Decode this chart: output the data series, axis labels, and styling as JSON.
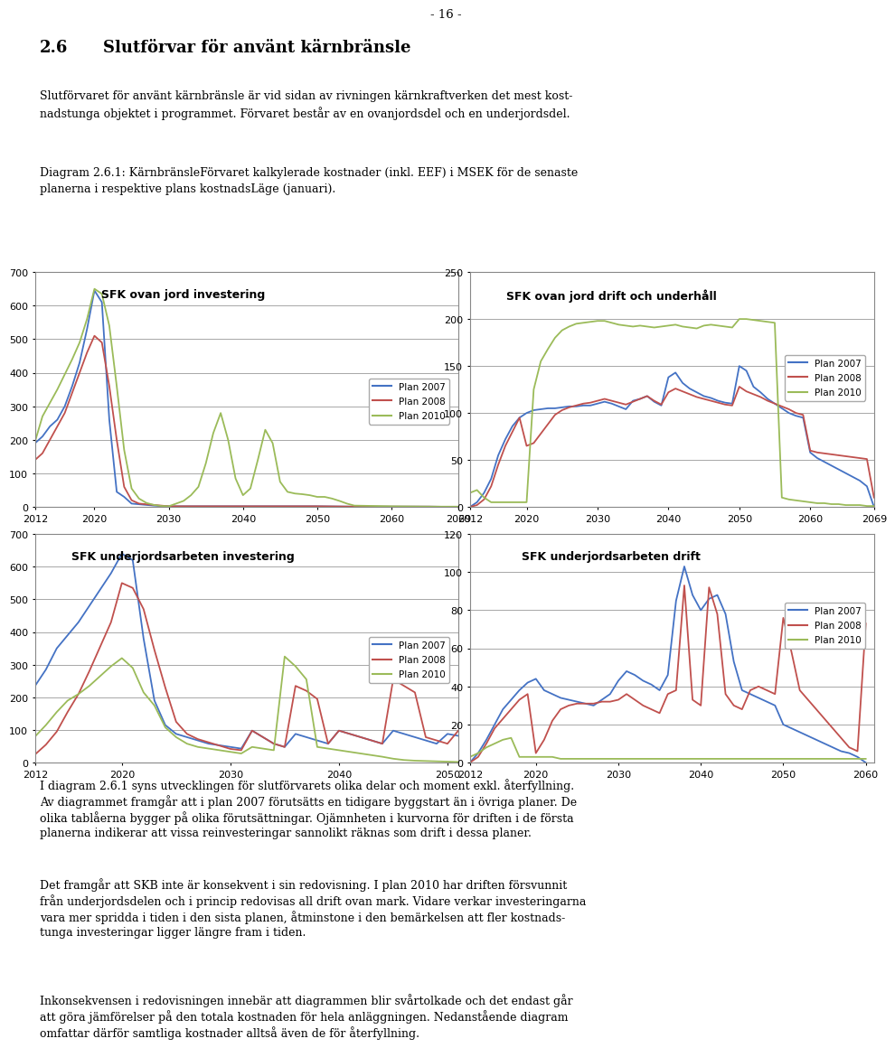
{
  "page_header": "- 16 -",
  "section_title": "2.6        Slutförvar för använt kärnbränsle",
  "para1_line1": "Slutförvaret för använt kärnbränsle är vid sidan av rivningen kärnkraftverken det mest kost-",
  "para1_line2": "nadstunga objektet i programmet. Förvaret består av en ovanjordsdel och en underjordsdel.",
  "caption_line1": "Diagram 2.6.1: KärnbränsleFörvaret kalkylerade kostnader (inkl. EEF) i MSEK för de senaste",
  "caption_line2": "planerna i respektive plans kostnadsLäge (januari).",
  "para2_line1": "I diagram 2.6.1 syns utvecklingen för slutförvarets olika delar och moment exkl. återfyllning.",
  "para2_line2": "Av diagrammet framgår att i plan 2007 förutsätts en tidigare byggstart än i övriga planer. De",
  "para2_line3": "olika tablåerna bygger på olika förutsättningar. Ojämnheten i kurvorna för driften i de första",
  "para2_line4": "planerna indikerar att vissa reinvesteringar sannolikt räknas som drift i dessa planer.",
  "para3_line1": "Det framgår att SKB inte är konsekvent i sin redovisning. I plan 2010 har driften försvunnit",
  "para3_line2": "från underjordsdelen och i princip redovisas all drift ovan mark. Vidare verkar investeringarna",
  "para3_line3": "vara mer spridda i tiden i den sista planen, åtminstone i den bemärkelsen att fler kostnads-",
  "para3_line4": "tunga investeringar ligger längre fram i tiden.",
  "para4_line1": "Inkonsekvensen i redovisningen innebär att diagrammen blir svårtolkade och det endast går",
  "para4_line2": "att göra jämförelser på den totala kostnaden för hela anläggningen. Nedanstående diagram",
  "para4_line3": "omfattar därför samtliga kostnader alltså även de för återfyllning.",
  "colors": {
    "plan2007": "#4472C4",
    "plan2008": "#C0504D",
    "plan2010": "#9BBB59"
  },
  "charts": {
    "top_left": {
      "title": "SFK ovan jord investering",
      "ylim": [
        0,
        700
      ],
      "yticks": [
        0,
        100,
        200,
        300,
        400,
        500,
        600,
        700
      ],
      "xlim": [
        2012,
        2069
      ],
      "xticks": [
        2012,
        2020,
        2030,
        2040,
        2050,
        2060,
        2069
      ],
      "plan2007_x": [
        2012,
        2013,
        2014,
        2015,
        2016,
        2017,
        2018,
        2019,
        2020,
        2021,
        2022,
        2023,
        2024,
        2025,
        2026,
        2027,
        2028,
        2029,
        2030,
        2035,
        2040,
        2045,
        2050,
        2055,
        2060,
        2065,
        2069
      ],
      "plan2007_y": [
        190,
        210,
        240,
        260,
        300,
        360,
        430,
        530,
        645,
        610,
        260,
        45,
        30,
        10,
        8,
        6,
        4,
        3,
        2,
        2,
        2,
        2,
        2,
        1,
        1,
        1,
        0
      ],
      "plan2008_x": [
        2012,
        2013,
        2014,
        2015,
        2016,
        2017,
        2018,
        2019,
        2020,
        2021,
        2022,
        2023,
        2024,
        2025,
        2026,
        2027,
        2028,
        2029,
        2030,
        2035,
        2040,
        2045,
        2050,
        2055,
        2060,
        2065,
        2069
      ],
      "plan2008_y": [
        140,
        160,
        200,
        240,
        280,
        340,
        400,
        460,
        510,
        490,
        360,
        200,
        60,
        20,
        10,
        8,
        6,
        4,
        2,
        2,
        2,
        2,
        2,
        1,
        1,
        1,
        0
      ],
      "plan2010_x": [
        2012,
        2013,
        2014,
        2015,
        2016,
        2017,
        2018,
        2019,
        2020,
        2021,
        2022,
        2023,
        2024,
        2025,
        2026,
        2027,
        2028,
        2029,
        2030,
        2031,
        2032,
        2033,
        2034,
        2035,
        2036,
        2037,
        2038,
        2039,
        2040,
        2041,
        2042,
        2043,
        2044,
        2045,
        2046,
        2047,
        2048,
        2049,
        2050,
        2051,
        2052,
        2053,
        2054,
        2055,
        2060,
        2065,
        2069
      ],
      "plan2010_y": [
        195,
        270,
        310,
        350,
        395,
        440,
        490,
        560,
        650,
        635,
        540,
        360,
        170,
        55,
        25,
        12,
        6,
        3,
        2,
        10,
        18,
        35,
        60,
        130,
        220,
        280,
        200,
        85,
        35,
        55,
        140,
        230,
        190,
        75,
        45,
        40,
        38,
        35,
        30,
        30,
        25,
        18,
        10,
        4,
        2,
        1,
        1
      ]
    },
    "top_right": {
      "title": "SFK ovan jord drift och underhåll",
      "ylim": [
        0,
        250
      ],
      "yticks": [
        0,
        50,
        100,
        150,
        200,
        250
      ],
      "xlim": [
        2012,
        2069
      ],
      "xticks": [
        2012,
        2020,
        2030,
        2040,
        2050,
        2060,
        2069
      ],
      "plan2007_x": [
        2012,
        2013,
        2014,
        2015,
        2016,
        2017,
        2018,
        2019,
        2020,
        2021,
        2022,
        2023,
        2024,
        2025,
        2026,
        2027,
        2028,
        2029,
        2030,
        2031,
        2032,
        2033,
        2034,
        2035,
        2036,
        2037,
        2038,
        2039,
        2040,
        2041,
        2042,
        2043,
        2044,
        2045,
        2046,
        2047,
        2048,
        2049,
        2050,
        2051,
        2052,
        2053,
        2054,
        2055,
        2056,
        2057,
        2058,
        2059,
        2060,
        2061,
        2062,
        2063,
        2064,
        2065,
        2066,
        2067,
        2068,
        2069
      ],
      "plan2007_y": [
        0,
        5,
        15,
        30,
        55,
        72,
        86,
        95,
        100,
        103,
        104,
        105,
        105,
        106,
        107,
        107,
        108,
        108,
        110,
        112,
        110,
        107,
        104,
        113,
        115,
        118,
        112,
        108,
        138,
        143,
        132,
        126,
        122,
        118,
        116,
        113,
        111,
        110,
        150,
        145,
        128,
        122,
        115,
        110,
        105,
        100,
        97,
        95,
        58,
        52,
        48,
        44,
        40,
        36,
        32,
        28,
        22,
        0
      ],
      "plan2008_x": [
        2012,
        2013,
        2014,
        2015,
        2016,
        2017,
        2018,
        2019,
        2020,
        2021,
        2022,
        2023,
        2024,
        2025,
        2026,
        2027,
        2028,
        2029,
        2030,
        2031,
        2032,
        2033,
        2034,
        2035,
        2036,
        2037,
        2038,
        2039,
        2040,
        2041,
        2042,
        2043,
        2044,
        2045,
        2046,
        2047,
        2048,
        2049,
        2050,
        2051,
        2052,
        2053,
        2054,
        2055,
        2056,
        2057,
        2058,
        2059,
        2060,
        2061,
        2062,
        2063,
        2064,
        2065,
        2066,
        2067,
        2068,
        2069
      ],
      "plan2008_y": [
        0,
        2,
        8,
        22,
        45,
        65,
        80,
        95,
        65,
        68,
        78,
        88,
        98,
        103,
        106,
        108,
        110,
        111,
        113,
        115,
        113,
        111,
        109,
        112,
        115,
        118,
        113,
        109,
        122,
        126,
        123,
        120,
        117,
        115,
        113,
        111,
        109,
        108,
        128,
        123,
        120,
        117,
        113,
        110,
        107,
        104,
        100,
        98,
        60,
        58,
        57,
        56,
        55,
        54,
        53,
        52,
        51,
        10
      ],
      "plan2010_x": [
        2012,
        2013,
        2014,
        2015,
        2016,
        2017,
        2018,
        2019,
        2020,
        2021,
        2022,
        2023,
        2024,
        2025,
        2026,
        2027,
        2028,
        2029,
        2030,
        2031,
        2032,
        2033,
        2034,
        2035,
        2036,
        2037,
        2038,
        2039,
        2040,
        2041,
        2042,
        2043,
        2044,
        2045,
        2046,
        2047,
        2048,
        2049,
        2050,
        2051,
        2052,
        2053,
        2054,
        2055,
        2056,
        2057,
        2058,
        2059,
        2060,
        2061,
        2062,
        2063,
        2064,
        2065,
        2066,
        2067,
        2068,
        2069
      ],
      "plan2010_y": [
        15,
        18,
        10,
        5,
        5,
        5,
        5,
        5,
        5,
        125,
        155,
        168,
        180,
        188,
        192,
        195,
        196,
        197,
        198,
        198,
        196,
        194,
        193,
        192,
        193,
        192,
        191,
        192,
        193,
        194,
        192,
        191,
        190,
        193,
        194,
        193,
        192,
        191,
        200,
        200,
        199,
        198,
        197,
        196,
        10,
        8,
        7,
        6,
        5,
        4,
        4,
        3,
        3,
        2,
        2,
        2,
        1,
        1
      ]
    },
    "bottom_left": {
      "title": "SFK underjordsarbeten investering",
      "ylim": [
        0,
        700
      ],
      "yticks": [
        0,
        100,
        200,
        300,
        400,
        500,
        600,
        700
      ],
      "xlim": [
        2012,
        2051
      ],
      "xticks": [
        2012,
        2020,
        2030,
        2040,
        2050
      ],
      "plan2007_x": [
        2012,
        2013,
        2014,
        2015,
        2016,
        2017,
        2018,
        2019,
        2020,
        2021,
        2022,
        2023,
        2024,
        2025,
        2026,
        2027,
        2028,
        2029,
        2030,
        2031,
        2032,
        2033,
        2034,
        2035,
        2036,
        2037,
        2038,
        2039,
        2040,
        2041,
        2042,
        2043,
        2044,
        2045,
        2046,
        2047,
        2048,
        2049,
        2050,
        2051
      ],
      "plan2007_y": [
        235,
        285,
        350,
        390,
        430,
        480,
        530,
        580,
        640,
        620,
        380,
        190,
        115,
        88,
        78,
        68,
        58,
        53,
        48,
        43,
        98,
        78,
        58,
        48,
        88,
        78,
        68,
        58,
        98,
        88,
        78,
        68,
        58,
        98,
        88,
        78,
        68,
        58,
        88,
        82
      ],
      "plan2008_x": [
        2012,
        2013,
        2014,
        2015,
        2016,
        2017,
        2018,
        2019,
        2020,
        2021,
        2022,
        2023,
        2024,
        2025,
        2026,
        2027,
        2028,
        2029,
        2030,
        2031,
        2032,
        2033,
        2034,
        2035,
        2036,
        2037,
        2038,
        2039,
        2040,
        2041,
        2042,
        2043,
        2044,
        2045,
        2046,
        2047,
        2048,
        2049,
        2050,
        2051
      ],
      "plan2008_y": [
        25,
        55,
        95,
        155,
        210,
        280,
        355,
        430,
        550,
        535,
        470,
        345,
        230,
        125,
        88,
        72,
        62,
        52,
        42,
        38,
        98,
        78,
        58,
        48,
        235,
        220,
        195,
        58,
        98,
        88,
        78,
        68,
        58,
        255,
        235,
        215,
        78,
        68,
        58,
        98
      ],
      "plan2010_x": [
        2012,
        2013,
        2014,
        2015,
        2016,
        2017,
        2018,
        2019,
        2020,
        2021,
        2022,
        2023,
        2024,
        2025,
        2026,
        2027,
        2028,
        2029,
        2030,
        2031,
        2032,
        2033,
        2034,
        2035,
        2036,
        2037,
        2038,
        2039,
        2040,
        2041,
        2042,
        2043,
        2044,
        2045,
        2046,
        2047,
        2048,
        2049,
        2050,
        2051
      ],
      "plan2010_y": [
        80,
        115,
        155,
        190,
        210,
        235,
        265,
        295,
        320,
        290,
        215,
        175,
        108,
        78,
        58,
        48,
        43,
        38,
        33,
        28,
        48,
        43,
        38,
        325,
        295,
        255,
        48,
        43,
        38,
        33,
        28,
        23,
        18,
        12,
        8,
        6,
        5,
        4,
        3,
        2
      ]
    },
    "bottom_right": {
      "title": "SFK underjordsarbeten drift",
      "ylim": [
        0,
        120
      ],
      "yticks": [
        0,
        20,
        40,
        60,
        80,
        100,
        120
      ],
      "xlim": [
        2012,
        2061
      ],
      "xticks": [
        2012,
        2020,
        2030,
        2040,
        2050,
        2060
      ],
      "plan2007_x": [
        2012,
        2013,
        2014,
        2015,
        2016,
        2017,
        2018,
        2019,
        2020,
        2021,
        2022,
        2023,
        2024,
        2025,
        2026,
        2027,
        2028,
        2029,
        2030,
        2031,
        2032,
        2033,
        2034,
        2035,
        2036,
        2037,
        2038,
        2039,
        2040,
        2041,
        2042,
        2043,
        2044,
        2045,
        2046,
        2047,
        2048,
        2049,
        2050,
        2051,
        2052,
        2053,
        2054,
        2055,
        2056,
        2057,
        2058,
        2059,
        2060
      ],
      "plan2007_y": [
        0,
        5,
        12,
        20,
        28,
        33,
        38,
        42,
        44,
        38,
        36,
        34,
        33,
        32,
        31,
        30,
        33,
        36,
        43,
        48,
        46,
        43,
        41,
        38,
        46,
        85,
        103,
        88,
        80,
        86,
        88,
        78,
        53,
        38,
        36,
        34,
        32,
        30,
        20,
        18,
        16,
        14,
        12,
        10,
        8,
        6,
        5,
        3,
        0
      ],
      "plan2008_x": [
        2012,
        2013,
        2014,
        2015,
        2016,
        2017,
        2018,
        2019,
        2020,
        2021,
        2022,
        2023,
        2024,
        2025,
        2026,
        2027,
        2028,
        2029,
        2030,
        2031,
        2032,
        2033,
        2034,
        2035,
        2036,
        2037,
        2038,
        2039,
        2040,
        2041,
        2042,
        2043,
        2044,
        2045,
        2046,
        2047,
        2048,
        2049,
        2050,
        2051,
        2052,
        2053,
        2054,
        2055,
        2056,
        2057,
        2058,
        2059,
        2060
      ],
      "plan2008_y": [
        0,
        3,
        10,
        18,
        23,
        28,
        33,
        36,
        5,
        12,
        22,
        28,
        30,
        31,
        31,
        31,
        32,
        32,
        33,
        36,
        33,
        30,
        28,
        26,
        36,
        38,
        93,
        33,
        30,
        92,
        78,
        36,
        30,
        28,
        38,
        40,
        38,
        36,
        76,
        58,
        38,
        33,
        28,
        23,
        18,
        13,
        8,
        6,
        73
      ],
      "plan2010_x": [
        2012,
        2013,
        2014,
        2015,
        2016,
        2017,
        2018,
        2019,
        2020,
        2021,
        2022,
        2023,
        2024,
        2025,
        2026,
        2027,
        2028,
        2029,
        2030,
        2031,
        2032,
        2033,
        2034,
        2035,
        2036,
        2037,
        2038,
        2039,
        2040,
        2041,
        2042,
        2043,
        2044,
        2045,
        2046,
        2047,
        2048,
        2049,
        2050,
        2051,
        2052,
        2053,
        2054,
        2055,
        2056,
        2057,
        2058,
        2059,
        2060
      ],
      "plan2010_y": [
        3,
        5,
        8,
        10,
        12,
        13,
        3,
        3,
        3,
        3,
        3,
        2,
        2,
        2,
        2,
        2,
        2,
        2,
        2,
        2,
        2,
        2,
        2,
        2,
        2,
        2,
        2,
        2,
        2,
        2,
        2,
        2,
        2,
        2,
        2,
        2,
        2,
        2,
        2,
        2,
        2,
        2,
        2,
        2,
        2,
        2,
        2,
        2,
        2
      ]
    }
  }
}
